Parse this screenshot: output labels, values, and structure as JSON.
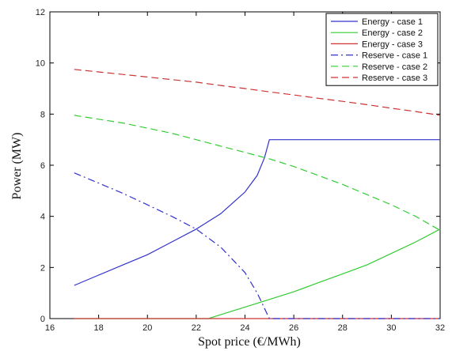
{
  "chart_data": {
    "type": "line",
    "title": "",
    "xlabel": "Spot price (€/MWh)",
    "ylabel": "Power (MW)",
    "xlim": [
      16,
      32
    ],
    "ylim": [
      0,
      12
    ],
    "xticks": [
      16,
      18,
      20,
      22,
      24,
      26,
      28,
      30,
      32
    ],
    "yticks": [
      0,
      2,
      4,
      6,
      8,
      10,
      12
    ],
    "grid": false,
    "legend_position": "top-right",
    "series": [
      {
        "name": "Energy - case 1",
        "color": "#3333cc",
        "dash": "solid",
        "x": [
          17,
          18,
          19,
          20,
          21,
          22,
          23,
          24,
          24.5,
          24.8,
          25,
          26,
          28,
          30,
          32
        ],
        "y": [
          1.3,
          1.7,
          2.1,
          2.5,
          3.0,
          3.5,
          4.1,
          4.95,
          5.6,
          6.3,
          7.0,
          7.0,
          7.0,
          7.0,
          7.0
        ]
      },
      {
        "name": "Energy - case 2",
        "color": "#33cc33",
        "dash": "solid",
        "x": [
          17,
          22.5,
          23,
          24,
          25,
          26,
          27,
          28,
          29,
          30,
          31,
          32
        ],
        "y": [
          0,
          0,
          0.15,
          0.45,
          0.75,
          1.05,
          1.4,
          1.75,
          2.1,
          2.55,
          3.0,
          3.5
        ]
      },
      {
        "name": "Energy - case 3",
        "color": "#cc3333",
        "dash": "solid",
        "x": [
          17,
          32
        ],
        "y": [
          0,
          0
        ]
      },
      {
        "name": "Reserve - case 1",
        "color": "#3333cc",
        "dash": "dashdot",
        "x": [
          17,
          18,
          19,
          20,
          21,
          22,
          23,
          24,
          24.5,
          25,
          26,
          28,
          30,
          32
        ],
        "y": [
          5.7,
          5.3,
          4.9,
          4.45,
          4.0,
          3.5,
          2.8,
          1.8,
          1.0,
          0,
          0,
          0,
          0,
          0
        ]
      },
      {
        "name": "Reserve - case 2",
        "color": "#33cc33",
        "dash": "dashed",
        "x": [
          17,
          18,
          19,
          20,
          21,
          22,
          23,
          24,
          25,
          26,
          27,
          28,
          29,
          30,
          31,
          32
        ],
        "y": [
          7.95,
          7.8,
          7.65,
          7.45,
          7.25,
          7.0,
          6.75,
          6.5,
          6.25,
          5.95,
          5.6,
          5.25,
          4.85,
          4.45,
          4.0,
          3.45
        ]
      },
      {
        "name": "Reserve - case 3",
        "color": "#cc3333",
        "dash": "dashed",
        "x": [
          17,
          18,
          19,
          20,
          21,
          22,
          23,
          24,
          25,
          26,
          27,
          28,
          29,
          30,
          31,
          32
        ],
        "y": [
          9.75,
          9.65,
          9.55,
          9.45,
          9.35,
          9.25,
          9.12,
          9.0,
          8.87,
          8.75,
          8.62,
          8.5,
          8.37,
          8.23,
          8.1,
          7.95
        ]
      }
    ]
  }
}
